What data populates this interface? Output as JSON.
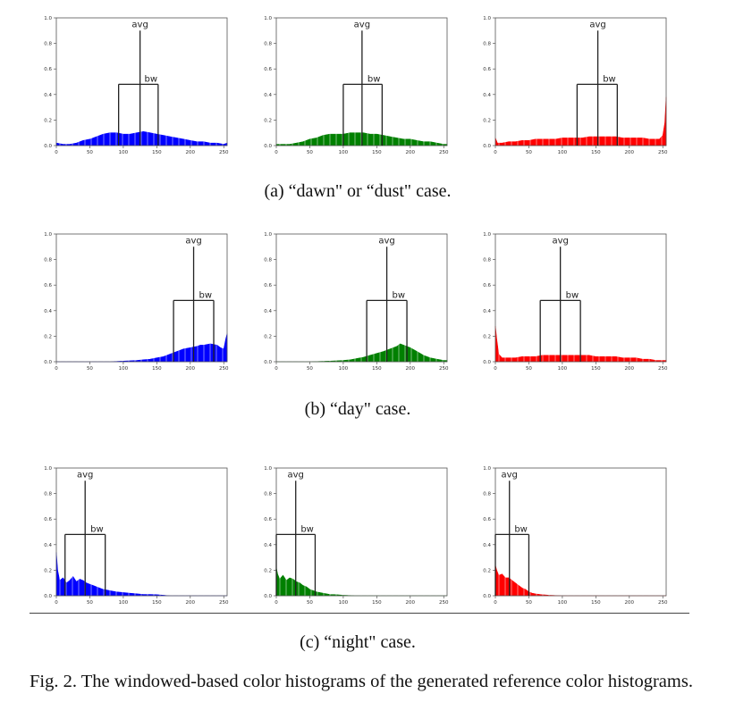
{
  "figure": {
    "caption": "Fig. 2. The windowed-based color histograms of the generated reference color histograms.",
    "subcaptions": [
      "(a) “dawn\" or “dust\" case.",
      "(b) “day\" case.",
      "(c) “night\" case."
    ]
  },
  "chart_data": [
    {
      "type": "area",
      "panel": "a-blue",
      "color": "#0000ff",
      "avg": 125,
      "bw_low": 93,
      "bw_high": 152,
      "marker_labels": {
        "avg": "avg",
        "bw": "bw"
      },
      "xlim": [
        0,
        255
      ],
      "ylim": [
        0,
        1
      ],
      "x_ticks": [
        0,
        50,
        100,
        150,
        200,
        250
      ],
      "y_ticks": [
        "0.0",
        "0.2",
        "0.4",
        "0.6",
        "0.8",
        "1.0"
      ],
      "x": [
        0,
        10,
        20,
        30,
        40,
        50,
        60,
        70,
        80,
        90,
        100,
        110,
        120,
        130,
        140,
        150,
        160,
        170,
        180,
        190,
        200,
        210,
        220,
        230,
        240,
        250,
        255
      ],
      "y": [
        0.02,
        0.01,
        0.01,
        0.02,
        0.04,
        0.05,
        0.07,
        0.09,
        0.1,
        0.1,
        0.09,
        0.09,
        0.1,
        0.11,
        0.1,
        0.09,
        0.08,
        0.07,
        0.06,
        0.05,
        0.04,
        0.03,
        0.03,
        0.02,
        0.02,
        0.01,
        0.02
      ]
    },
    {
      "type": "area",
      "panel": "a-green",
      "color": "#008000",
      "avg": 128,
      "bw_low": 100,
      "bw_high": 158,
      "marker_labels": {
        "avg": "avg",
        "bw": "bw"
      },
      "xlim": [
        0,
        255
      ],
      "ylim": [
        0,
        1
      ],
      "x_ticks": [
        0,
        50,
        100,
        150,
        200,
        250
      ],
      "y_ticks": [
        "0.0",
        "0.2",
        "0.4",
        "0.6",
        "0.8",
        "1.0"
      ],
      "x": [
        0,
        10,
        20,
        30,
        40,
        50,
        60,
        70,
        80,
        90,
        100,
        110,
        120,
        130,
        140,
        150,
        160,
        170,
        180,
        190,
        200,
        210,
        220,
        230,
        240,
        250,
        255
      ],
      "y": [
        0.01,
        0.01,
        0.01,
        0.02,
        0.03,
        0.05,
        0.06,
        0.08,
        0.09,
        0.09,
        0.09,
        0.1,
        0.1,
        0.1,
        0.09,
        0.09,
        0.08,
        0.07,
        0.06,
        0.05,
        0.05,
        0.04,
        0.03,
        0.03,
        0.02,
        0.01,
        0.01
      ]
    },
    {
      "type": "area",
      "panel": "a-red",
      "color": "#ff0000",
      "avg": 153,
      "bw_low": 122,
      "bw_high": 182,
      "marker_labels": {
        "avg": "avg",
        "bw": "bw"
      },
      "xlim": [
        0,
        255
      ],
      "ylim": [
        0,
        1
      ],
      "x_ticks": [
        0,
        50,
        100,
        150,
        200,
        250
      ],
      "y_ticks": [
        "0.0",
        "0.2",
        "0.4",
        "0.6",
        "0.8",
        "1.0"
      ],
      "x": [
        0,
        3,
        10,
        20,
        30,
        40,
        50,
        60,
        70,
        80,
        90,
        100,
        110,
        120,
        130,
        140,
        150,
        160,
        170,
        180,
        190,
        200,
        210,
        220,
        230,
        240,
        245,
        250,
        253,
        255
      ],
      "y": [
        0.06,
        0.02,
        0.02,
        0.03,
        0.03,
        0.04,
        0.04,
        0.05,
        0.05,
        0.05,
        0.05,
        0.06,
        0.06,
        0.06,
        0.06,
        0.07,
        0.07,
        0.07,
        0.07,
        0.07,
        0.06,
        0.06,
        0.06,
        0.06,
        0.05,
        0.05,
        0.05,
        0.08,
        0.18,
        0.38
      ]
    },
    {
      "type": "area",
      "panel": "b-blue",
      "color": "#0000ff",
      "avg": 205,
      "bw_low": 175,
      "bw_high": 235,
      "marker_labels": {
        "avg": "avg",
        "bw": "bw"
      },
      "xlim": [
        0,
        255
      ],
      "ylim": [
        0,
        1
      ],
      "x_ticks": [
        0,
        50,
        100,
        150,
        200,
        250
      ],
      "y_ticks": [
        "0.0",
        "0.2",
        "0.4",
        "0.6",
        "0.8",
        "1.0"
      ],
      "x": [
        0,
        50,
        80,
        100,
        120,
        130,
        140,
        150,
        160,
        170,
        180,
        190,
        200,
        210,
        215,
        220,
        230,
        240,
        245,
        250,
        253,
        255
      ],
      "y": [
        0.0,
        0.0,
        0.0,
        0.005,
        0.01,
        0.015,
        0.02,
        0.03,
        0.04,
        0.06,
        0.08,
        0.1,
        0.11,
        0.12,
        0.13,
        0.13,
        0.14,
        0.13,
        0.11,
        0.1,
        0.18,
        0.22
      ]
    },
    {
      "type": "area",
      "panel": "b-green",
      "color": "#008000",
      "avg": 165,
      "bw_low": 135,
      "bw_high": 195,
      "marker_labels": {
        "avg": "avg",
        "bw": "bw"
      },
      "xlim": [
        0,
        255
      ],
      "ylim": [
        0,
        1
      ],
      "x_ticks": [
        0,
        50,
        100,
        150,
        200,
        250
      ],
      "y_ticks": [
        "0.0",
        "0.2",
        "0.4",
        "0.6",
        "0.8",
        "1.0"
      ],
      "x": [
        0,
        50,
        80,
        100,
        110,
        120,
        130,
        140,
        150,
        160,
        170,
        180,
        185,
        190,
        200,
        210,
        220,
        230,
        240,
        250,
        255
      ],
      "y": [
        0.0,
        0.0,
        0.005,
        0.01,
        0.015,
        0.025,
        0.035,
        0.05,
        0.065,
        0.08,
        0.1,
        0.12,
        0.14,
        0.13,
        0.11,
        0.08,
        0.05,
        0.03,
        0.02,
        0.01,
        0.01
      ]
    },
    {
      "type": "area",
      "panel": "b-red",
      "color": "#ff0000",
      "avg": 97,
      "bw_low": 67,
      "bw_high": 127,
      "marker_labels": {
        "avg": "avg",
        "bw": "bw"
      },
      "xlim": [
        0,
        255
      ],
      "ylim": [
        0,
        1
      ],
      "x_ticks": [
        0,
        50,
        100,
        150,
        200,
        250
      ],
      "y_ticks": [
        "0.0",
        "0.2",
        "0.4",
        "0.6",
        "0.8",
        "1.0"
      ],
      "x": [
        0,
        2,
        5,
        10,
        20,
        30,
        40,
        50,
        60,
        70,
        80,
        90,
        100,
        110,
        120,
        130,
        140,
        150,
        160,
        170,
        180,
        190,
        200,
        210,
        220,
        230,
        240,
        250,
        255
      ],
      "y": [
        0.28,
        0.18,
        0.06,
        0.03,
        0.03,
        0.03,
        0.04,
        0.04,
        0.04,
        0.05,
        0.05,
        0.05,
        0.05,
        0.05,
        0.05,
        0.05,
        0.05,
        0.04,
        0.04,
        0.04,
        0.04,
        0.03,
        0.03,
        0.03,
        0.02,
        0.02,
        0.01,
        0.01,
        0.01
      ]
    },
    {
      "type": "area",
      "panel": "c-blue",
      "color": "#0000ff",
      "avg": 43,
      "bw_low": 13,
      "bw_high": 73,
      "marker_labels": {
        "avg": "avg",
        "bw": "bw"
      },
      "xlim": [
        0,
        255
      ],
      "ylim": [
        0,
        1
      ],
      "x_ticks": [
        0,
        50,
        100,
        150,
        200,
        250
      ],
      "y_ticks": [
        "0.0",
        "0.2",
        "0.4",
        "0.6",
        "0.8",
        "1.0"
      ],
      "x": [
        0,
        2,
        5,
        10,
        15,
        20,
        25,
        30,
        35,
        40,
        45,
        50,
        55,
        60,
        70,
        80,
        90,
        100,
        110,
        120,
        130,
        140,
        150,
        160,
        170,
        200,
        255
      ],
      "y": [
        0.34,
        0.2,
        0.12,
        0.14,
        0.1,
        0.12,
        0.15,
        0.11,
        0.13,
        0.12,
        0.1,
        0.09,
        0.08,
        0.07,
        0.05,
        0.04,
        0.03,
        0.025,
        0.02,
        0.015,
        0.01,
        0.01,
        0.008,
        0.004,
        0.0,
        0.0,
        0.0
      ]
    },
    {
      "type": "area",
      "panel": "c-green",
      "color": "#008000",
      "avg": 29,
      "bw_low": 0,
      "bw_high": 58,
      "marker_labels": {
        "avg": "avg",
        "bw": "bw"
      },
      "xlim": [
        0,
        255
      ],
      "ylim": [
        0,
        1
      ],
      "x_ticks": [
        0,
        50,
        100,
        150,
        200,
        250
      ],
      "y_ticks": [
        "0.0",
        "0.2",
        "0.4",
        "0.6",
        "0.8",
        "1.0"
      ],
      "x": [
        0,
        2,
        5,
        10,
        15,
        20,
        25,
        30,
        35,
        40,
        45,
        50,
        55,
        60,
        70,
        80,
        90,
        100,
        120,
        150,
        255
      ],
      "y": [
        0.22,
        0.17,
        0.13,
        0.16,
        0.12,
        0.14,
        0.13,
        0.11,
        0.1,
        0.08,
        0.07,
        0.05,
        0.04,
        0.03,
        0.02,
        0.01,
        0.008,
        0.004,
        0.0,
        0.0,
        0.0
      ]
    },
    {
      "type": "area",
      "panel": "c-red",
      "color": "#ff0000",
      "avg": 21,
      "bw_low": 0,
      "bw_high": 50,
      "marker_labels": {
        "avg": "avg",
        "bw": "bw"
      },
      "xlim": [
        0,
        255
      ],
      "ylim": [
        0,
        1
      ],
      "x_ticks": [
        0,
        50,
        100,
        150,
        200,
        250
      ],
      "y_ticks": [
        "0.0",
        "0.2",
        "0.4",
        "0.6",
        "0.8",
        "1.0"
      ],
      "x": [
        0,
        2,
        5,
        10,
        15,
        20,
        25,
        30,
        35,
        40,
        45,
        50,
        55,
        60,
        70,
        80,
        100,
        150,
        255
      ],
      "y": [
        0.24,
        0.2,
        0.16,
        0.17,
        0.14,
        0.14,
        0.12,
        0.1,
        0.08,
        0.06,
        0.05,
        0.03,
        0.02,
        0.015,
        0.008,
        0.004,
        0.0,
        0.0,
        0.0
      ]
    }
  ]
}
